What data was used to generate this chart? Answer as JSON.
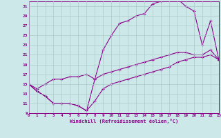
{
  "xlabel": "Windchill (Refroidissement éolien,°C)",
  "bg_color": "#cce8e8",
  "line_color": "#880088",
  "grid_color": "#aacccc",
  "xlim": [
    0,
    23
  ],
  "ylim": [
    9,
    32
  ],
  "xticks": [
    0,
    1,
    2,
    3,
    4,
    5,
    6,
    7,
    8,
    9,
    10,
    11,
    12,
    13,
    14,
    15,
    16,
    17,
    18,
    19,
    20,
    21,
    22,
    23
  ],
  "yticks": [
    9,
    11,
    13,
    15,
    17,
    19,
    21,
    23,
    25,
    27,
    29,
    31
  ],
  "curve1_x": [
    0,
    1,
    2,
    3,
    4,
    5,
    6,
    7,
    8,
    9,
    10,
    11,
    12,
    13,
    14,
    15,
    16,
    17,
    18,
    19,
    20,
    21,
    22,
    23
  ],
  "curve1_y": [
    15,
    14,
    15,
    16,
    16,
    16.5,
    16.5,
    17,
    16,
    22,
    25,
    27.5,
    28,
    29,
    29.5,
    31.5,
    32,
    32.5,
    32.5,
    31,
    30,
    23,
    28,
    20
  ],
  "curve2_x": [
    0,
    1,
    2,
    3,
    4,
    5,
    6,
    7,
    8,
    9,
    10,
    11,
    12,
    13,
    14,
    15,
    16,
    17,
    18,
    19,
    20,
    21,
    22,
    23
  ],
  "curve2_y": [
    15,
    13.5,
    12.5,
    11,
    11,
    11,
    10.5,
    9.5,
    16,
    17,
    17.5,
    18,
    18.5,
    19,
    19.5,
    20,
    20.5,
    21,
    21.5,
    21.5,
    21,
    21,
    22,
    20
  ],
  "curve3_x": [
    0,
    1,
    2,
    3,
    4,
    5,
    6,
    7,
    8,
    9,
    10,
    11,
    12,
    13,
    14,
    15,
    16,
    17,
    18,
    19,
    20,
    21,
    22,
    23
  ],
  "curve3_y": [
    15,
    13.5,
    12.5,
    11,
    11,
    11,
    10.5,
    9.5,
    11.5,
    14,
    15,
    15.5,
    16,
    16.5,
    17,
    17.5,
    18,
    18.5,
    19.5,
    20,
    20.5,
    20.5,
    21,
    20
  ]
}
